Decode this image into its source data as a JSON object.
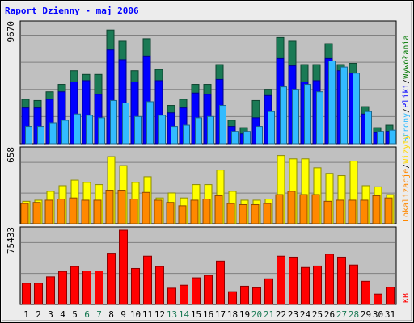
{
  "title": "Raport Dzienny -  maj 2006",
  "colors": {
    "title": "#0000ff",
    "visits": "#1a7a55",
    "pages": "#0000ff",
    "files": "#33bbff",
    "hits": "#007700",
    "sites": "#ff8800",
    "visitsYellow": "#ffff00",
    "kb": "#ff0000",
    "weekend": "#1a7a55",
    "panel": "#c0c0c0",
    "grid": "#808080"
  },
  "chart_data": [
    {
      "type": "bar",
      "panel": "top",
      "ymax_label": "9670",
      "ylim": [
        0,
        9670
      ],
      "right_label_parts": [
        {
          "text": "Wywołania",
          "color": "#007700"
        },
        {
          "text": "/",
          "color": "#000000"
        },
        {
          "text": "Pliki",
          "color": "#0000ff"
        },
        {
          "text": "/",
          "color": "#000000"
        },
        {
          "text": "Strony",
          "color": "#33bbff"
        }
      ],
      "categories": [
        "1",
        "2",
        "3",
        "4",
        "5",
        "6",
        "7",
        "8",
        "9",
        "10",
        "11",
        "12",
        "13",
        "14",
        "15",
        "16",
        "17",
        "18",
        "19",
        "20",
        "21",
        "22",
        "23",
        "24",
        "25",
        "26",
        "27",
        "28",
        "29",
        "30",
        "31"
      ],
      "series": [
        {
          "name": "Wywołania",
          "values": [
            3600,
            3500,
            4200,
            4800,
            5900,
            5600,
            5600,
            9200,
            8300,
            5900,
            8500,
            6000,
            3100,
            3600,
            4800,
            4800,
            6400,
            1900,
            1300,
            3500,
            4400,
            8600,
            8300,
            6400,
            6400,
            8100,
            6400,
            6500,
            3000,
            1300,
            1500
          ]
        },
        {
          "name": "Pliki",
          "values": [
            2900,
            2900,
            3600,
            4200,
            5000,
            5100,
            4000,
            7600,
            6800,
            5000,
            7100,
            5100,
            2500,
            2900,
            4100,
            4000,
            5200,
            1400,
            800,
            2100,
            3900,
            6900,
            6300,
            5000,
            5100,
            6900,
            5900,
            5700,
            2400,
            900,
            1000
          ]
        },
        {
          "name": "Strony",
          "values": [
            1400,
            1400,
            1700,
            1900,
            2400,
            2300,
            2100,
            3500,
            3300,
            2200,
            3400,
            2300,
            1400,
            1500,
            2100,
            2200,
            3100,
            1000,
            1000,
            1400,
            2600,
            4600,
            4400,
            4800,
            4200,
            6700,
            6200,
            5700,
            2600,
            1000,
            1100
          ]
        }
      ]
    },
    {
      "type": "bar",
      "panel": "middle",
      "ymax_label": "658",
      "ylim": [
        0,
        658
      ],
      "right_label_parts": [
        {
          "text": "Wizyty",
          "color": "#ffd700"
        },
        {
          "text": "/",
          "color": "#000000"
        },
        {
          "text": "Lokalizacje",
          "color": "#ff8800"
        }
      ],
      "categories": [
        "1",
        "2",
        "3",
        "4",
        "5",
        "6",
        "7",
        "8",
        "9",
        "10",
        "11",
        "12",
        "13",
        "14",
        "15",
        "16",
        "17",
        "18",
        "19",
        "20",
        "21",
        "22",
        "23",
        "24",
        "25",
        "26",
        "27",
        "28",
        "29",
        "30",
        "31"
      ],
      "series": [
        {
          "name": "Wizyty",
          "values": [
            200,
            210,
            290,
            340,
            390,
            370,
            350,
            600,
            520,
            370,
            420,
            230,
            275,
            230,
            350,
            350,
            480,
            290,
            210,
            210,
            220,
            610,
            580,
            580,
            500,
            450,
            430,
            560,
            340,
            330,
            260
          ]
        },
        {
          "name": "Lokalizacje",
          "values": [
            180,
            190,
            210,
            220,
            230,
            210,
            210,
            300,
            300,
            220,
            280,
            210,
            190,
            160,
            210,
            220,
            250,
            180,
            170,
            170,
            180,
            260,
            290,
            260,
            260,
            200,
            210,
            210,
            210,
            250,
            230
          ]
        }
      ]
    },
    {
      "type": "bar",
      "panel": "bottom",
      "ymax_label": "75433",
      "ylim": [
        0,
        75433
      ],
      "right_label_parts": [
        {
          "text": "KB",
          "color": "#ff0000"
        }
      ],
      "categories": [
        "1",
        "2",
        "3",
        "4",
        "5",
        "6",
        "7",
        "8",
        "9",
        "10",
        "11",
        "12",
        "13",
        "14",
        "15",
        "16",
        "17",
        "18",
        "19",
        "20",
        "21",
        "22",
        "23",
        "24",
        "25",
        "26",
        "27",
        "28",
        "29",
        "30",
        "31"
      ],
      "series": [
        {
          "name": "KB",
          "values": [
            21500,
            21500,
            28000,
            33500,
            38500,
            34000,
            34000,
            52000,
            75433,
            36500,
            49000,
            38500,
            16500,
            19500,
            27000,
            29500,
            44000,
            13000,
            18500,
            17000,
            26000,
            49000,
            48000,
            37500,
            39000,
            51000,
            48000,
            40000,
            23500,
            10500,
            17500
          ]
        }
      ]
    }
  ],
  "x_labels": [
    {
      "text": "1",
      "weekend": false
    },
    {
      "text": "2",
      "weekend": false
    },
    {
      "text": "3",
      "weekend": false
    },
    {
      "text": "4",
      "weekend": false
    },
    {
      "text": "5",
      "weekend": false
    },
    {
      "text": "6",
      "weekend": true
    },
    {
      "text": "7",
      "weekend": true
    },
    {
      "text": "8",
      "weekend": false
    },
    {
      "text": "9",
      "weekend": false
    },
    {
      "text": "10",
      "weekend": false
    },
    {
      "text": "11",
      "weekend": false
    },
    {
      "text": "12",
      "weekend": false
    },
    {
      "text": "13",
      "weekend": true
    },
    {
      "text": "14",
      "weekend": true
    },
    {
      "text": "15",
      "weekend": false
    },
    {
      "text": "16",
      "weekend": false
    },
    {
      "text": "17",
      "weekend": false
    },
    {
      "text": "18",
      "weekend": false
    },
    {
      "text": "19",
      "weekend": false
    },
    {
      "text": "20",
      "weekend": true
    },
    {
      "text": "21",
      "weekend": true
    },
    {
      "text": "22",
      "weekend": false
    },
    {
      "text": "23",
      "weekend": false
    },
    {
      "text": "24",
      "weekend": false
    },
    {
      "text": "25",
      "weekend": false
    },
    {
      "text": "26",
      "weekend": false
    },
    {
      "text": "27",
      "weekend": true
    },
    {
      "text": "28",
      "weekend": true
    },
    {
      "text": "29",
      "weekend": false
    },
    {
      "text": "30",
      "weekend": false
    },
    {
      "text": "31",
      "weekend": false
    }
  ]
}
